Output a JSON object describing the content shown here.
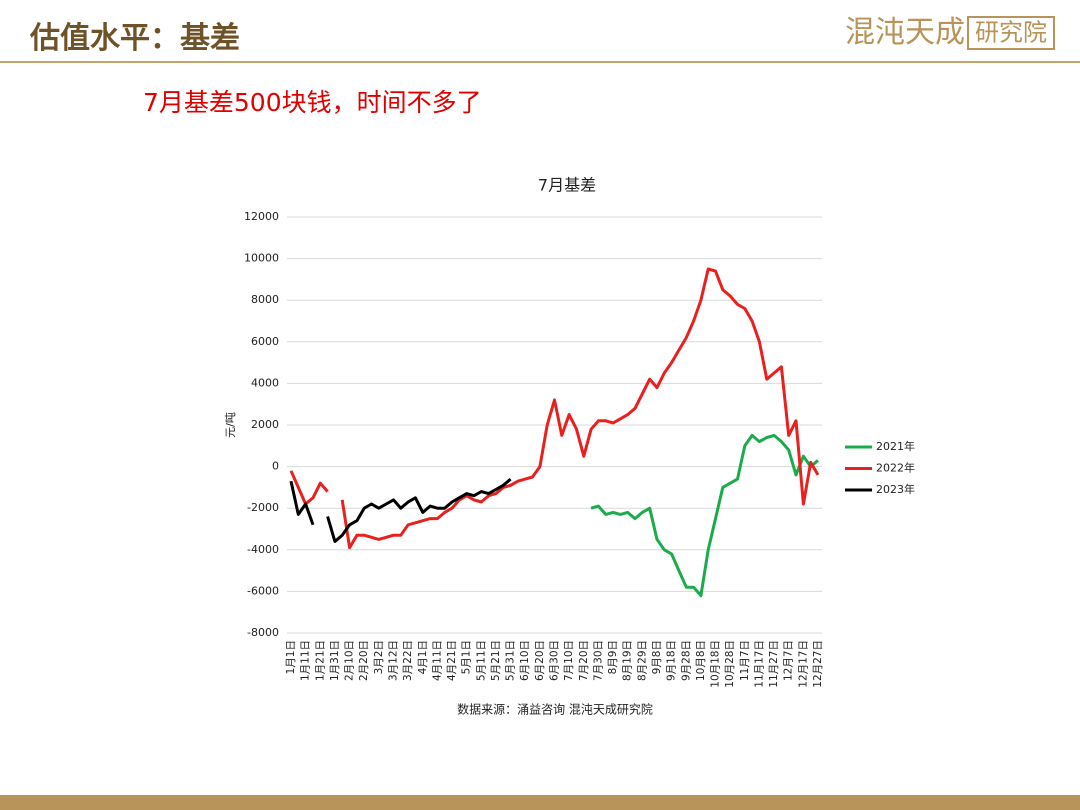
{
  "header": {
    "title": "估值水平：基差",
    "logo_name": "混沌天成",
    "logo_suffix": "研究院"
  },
  "subtitle": "7月基差500块钱，时间不多了",
  "chart_data": {
    "type": "line",
    "title": "7月基差",
    "y_label": "元/吨",
    "source": "数据来源：涌益咨询 混沌天成研究院",
    "categories": [
      "1月1日",
      null,
      "1月11日",
      null,
      "1月21日",
      null,
      "1月31日",
      null,
      "2月10日",
      null,
      "2月20日",
      null,
      "3月2日",
      null,
      "3月12日",
      null,
      "3月22日",
      null,
      "4月1日",
      null,
      "4月11日",
      null,
      "4月21日",
      null,
      "5月1日",
      null,
      "5月11日",
      null,
      "5月21日",
      null,
      "5月31日",
      null,
      "6月10日",
      null,
      "6月20日",
      null,
      "6月30日",
      null,
      "7月10日",
      null,
      "7月20日",
      null,
      "7月30日",
      null,
      "8月9日",
      null,
      "8月19日",
      null,
      "8月29日",
      null,
      "9月8日",
      null,
      "9月18日",
      null,
      "9月28日",
      null,
      "10月8日",
      null,
      "10月18日",
      null,
      "10月28日",
      null,
      "11月7日",
      null,
      "11月17日",
      null,
      "11月27日",
      null,
      "12月7日",
      null,
      "12月17日",
      null,
      "12月27日"
    ],
    "series": [
      {
        "name": "2021年",
        "color": "#1aab4a",
        "values": [
          null,
          null,
          null,
          null,
          null,
          null,
          null,
          null,
          null,
          null,
          null,
          null,
          null,
          null,
          null,
          null,
          null,
          null,
          null,
          null,
          null,
          null,
          null,
          null,
          null,
          null,
          null,
          null,
          null,
          null,
          null,
          null,
          null,
          null,
          null,
          null,
          null,
          null,
          null,
          null,
          null,
          -2000,
          -1900,
          -2300,
          -2200,
          -2300,
          -2200,
          -2500,
          -2200,
          -2000,
          -3500,
          -4000,
          -4200,
          -5000,
          -5800,
          -5800,
          -6200,
          -4000,
          -2500,
          -1000,
          -800,
          -600,
          1000,
          1500,
          1200,
          1400,
          1500,
          1200,
          800,
          -400,
          500,
          0,
          300
        ]
      },
      {
        "name": "2022年",
        "color": "#e8201e",
        "values": [
          -200,
          -1000,
          -1800,
          -1500,
          -800,
          -1200,
          null,
          -1600,
          -3900,
          -3300,
          -3300,
          -3400,
          -3500,
          -3400,
          -3300,
          -3300,
          -2800,
          -2700,
          -2600,
          -2500,
          -2500,
          -2200,
          -2000,
          -1600,
          -1400,
          -1600,
          -1700,
          -1400,
          -1300,
          -1000,
          -900,
          -700,
          -600,
          -500,
          0,
          2000,
          3200,
          1500,
          2500,
          1800,
          500,
          1800,
          2200,
          2200,
          2100,
          2300,
          2500,
          2800,
          3500,
          4200,
          3800,
          4500,
          5000,
          5600,
          6200,
          7000,
          8000,
          9500,
          9400,
          8500,
          8200,
          7800,
          7600,
          7000,
          6000,
          4200,
          4500,
          4800,
          1500,
          2200,
          -1800,
          200,
          -400
        ]
      },
      {
        "name": "2023年",
        "color": "#000000",
        "values": [
          -700,
          -2300,
          -1800,
          -2800,
          null,
          -2400,
          -3600,
          -3300,
          -2800,
          -2600,
          -2000,
          -1800,
          -2000,
          -1800,
          -1600,
          -2000,
          -1700,
          -1500,
          -2200,
          -1900,
          -2000,
          -2000,
          -1700,
          -1500,
          -1300,
          -1400,
          -1200,
          -1300,
          -1100,
          -900,
          -600,
          null,
          null,
          null,
          null,
          null,
          null,
          null,
          null,
          null,
          null,
          null,
          null,
          null,
          null,
          null,
          null,
          null,
          null,
          null,
          null,
          null,
          null,
          null,
          null,
          null,
          null,
          null,
          null,
          null,
          null,
          null,
          null,
          null,
          null,
          null,
          null,
          null,
          null,
          null,
          null,
          null,
          null
        ]
      }
    ],
    "ylim": [
      -8000,
      12000
    ],
    "yticks": [
      -8000,
      -6000,
      -4000,
      -2000,
      0,
      2000,
      4000,
      6000,
      8000,
      10000,
      12000
    ],
    "grid": true,
    "legend": "right"
  }
}
